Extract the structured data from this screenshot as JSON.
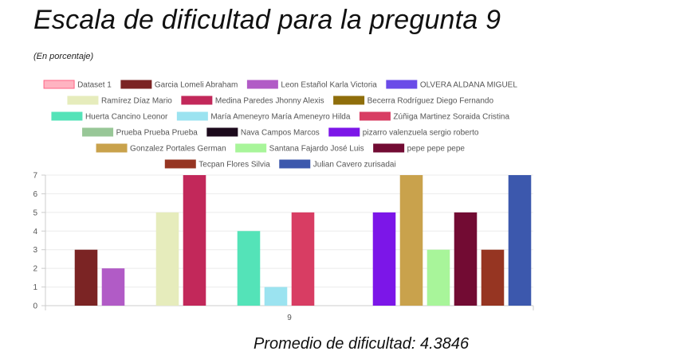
{
  "title": "Escala de dificultad para la pregunta 9",
  "subtitle": "(En porcentaje)",
  "footer": "Promedio de dificultad: 4.3846",
  "chart_data": {
    "type": "bar",
    "categories": [
      "9"
    ],
    "ylim": [
      0,
      7
    ],
    "yticks": [
      0,
      1,
      2,
      3,
      4,
      5,
      6,
      7
    ],
    "grid": true,
    "legend_position": "top",
    "series": [
      {
        "name": "Dataset 1",
        "values": [
          null
        ],
        "color": "#ffb3c1",
        "border": "#ff6384"
      },
      {
        "name": "Garcia Lomeli Abraham",
        "values": [
          3
        ],
        "color": "#7b2424"
      },
      {
        "name": "Leon Estañol Karla Victoria",
        "values": [
          2
        ],
        "color": "#b15bc6"
      },
      {
        "name": "OLVERA ALDANA MIGUEL",
        "values": [
          null
        ],
        "color": "#6a4be8"
      },
      {
        "name": "Ramírez  Díaz Mario",
        "values": [
          5
        ],
        "color": "#e6ecbc"
      },
      {
        "name": "Medina Paredes Jhonny Alexis",
        "values": [
          7
        ],
        "color": "#c2285a"
      },
      {
        "name": "Becerra Rodríguez Diego Fernando",
        "values": [
          null
        ],
        "color": "#8f6e0b"
      },
      {
        "name": "Huerta Cancino Leonor",
        "values": [
          4
        ],
        "color": "#54e3b8"
      },
      {
        "name": "María Ameneyro María Ameneyro Hilda",
        "values": [
          1
        ],
        "color": "#9be3f0"
      },
      {
        "name": "Zúñiga  Martinez Soraida Cristina",
        "values": [
          5
        ],
        "color": "#d83d63"
      },
      {
        "name": "Prueba Prueba Prueba",
        "values": [
          null
        ],
        "color": "#98c797"
      },
      {
        "name": "Nava Campos Marcos",
        "values": [
          null
        ],
        "color": "#1c0a1c"
      },
      {
        "name": "pizarro valenzuela sergio roberto",
        "values": [
          5
        ],
        "color": "#7c16e8"
      },
      {
        "name": "Gonzalez Portales German",
        "values": [
          7
        ],
        "color": "#c9a24c"
      },
      {
        "name": "Santana Fajardo José Luis",
        "values": [
          3
        ],
        "color": "#a8f59a"
      },
      {
        "name": "pepe pepe pepe",
        "values": [
          5
        ],
        "color": "#720b33"
      },
      {
        "name": "Tecpan Flores Silvia",
        "values": [
          3
        ],
        "color": "#963522"
      },
      {
        "name": "Julian Cavero zurisadai",
        "values": [
          7
        ],
        "color": "#3c58ad"
      }
    ]
  }
}
